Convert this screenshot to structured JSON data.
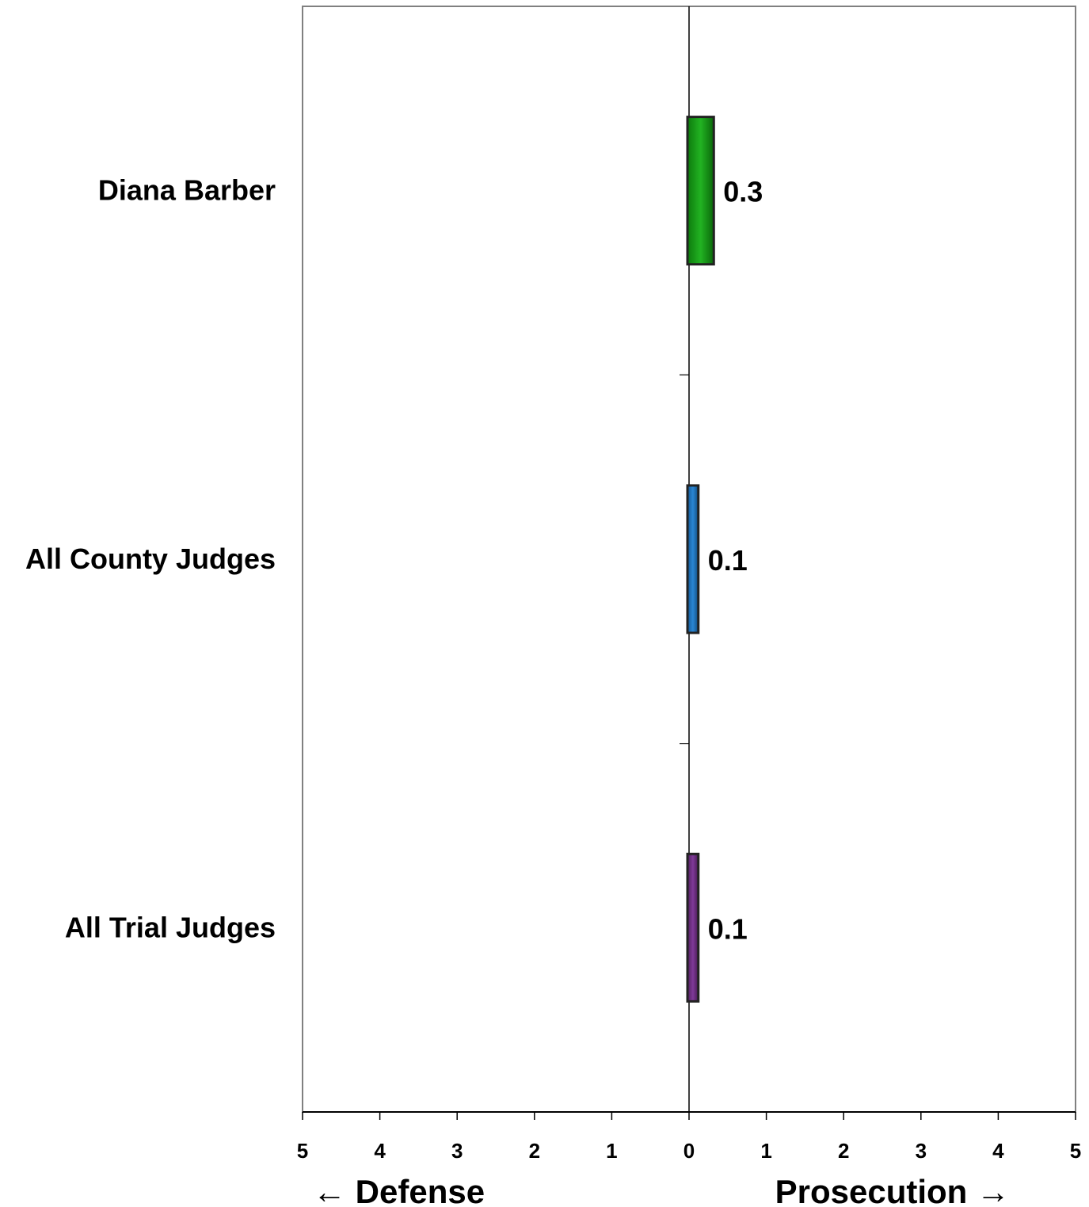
{
  "chart_data": {
    "type": "bar",
    "orientation": "horizontal",
    "categories": [
      "Diana Barber",
      "All County Judges",
      "All Trial Judges"
    ],
    "values": [
      0.3,
      0.1,
      0.1
    ],
    "data_labels": [
      "0.3",
      "0.1",
      "0.1"
    ],
    "bar_colors": [
      "#119911",
      "#1a6fb8",
      "#6a2a80"
    ],
    "xlim": [
      -5,
      5
    ],
    "x_tick_labels": [
      "5",
      "4",
      "3",
      "2",
      "1",
      "0",
      "1",
      "2",
      "3",
      "4",
      "5"
    ],
    "xlabel_left": "← Defense",
    "xlabel_right": "Prosecution →",
    "grid": false,
    "legend": "none"
  }
}
